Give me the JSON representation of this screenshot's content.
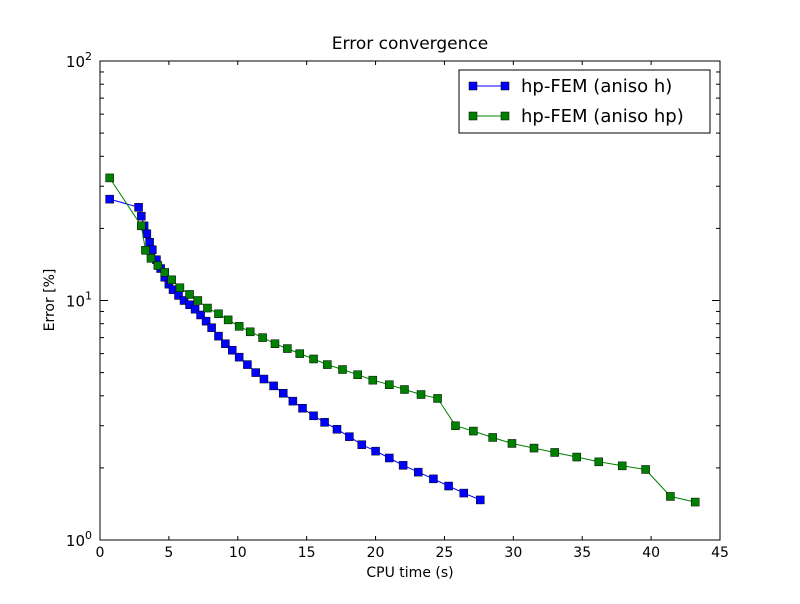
{
  "chart_data": {
    "type": "line",
    "title": "Error convergence",
    "xlabel": "CPU time (s)",
    "ylabel": "Error [%]",
    "xlim": [
      0,
      45
    ],
    "ylim": [
      1,
      100
    ],
    "yscale": "log",
    "grid": false,
    "legend_position": "top-right",
    "x_ticks": [
      "0",
      "5",
      "10",
      "15",
      "20",
      "25",
      "30",
      "35",
      "40",
      "45"
    ],
    "y_ticks": [
      {
        "base": "10",
        "exp": "0"
      },
      {
        "base": "10",
        "exp": "1"
      },
      {
        "base": "10",
        "exp": "2"
      }
    ],
    "series": [
      {
        "name": "hp-FEM (aniso h)",
        "color": "#0000ff",
        "marker": "square",
        "x": [
          0.7,
          2.8,
          3.0,
          3.2,
          3.4,
          3.6,
          3.8,
          4.1,
          4.4,
          4.7,
          5.0,
          5.3,
          5.7,
          6.1,
          6.5,
          6.9,
          7.3,
          7.7,
          8.1,
          8.6,
          9.1,
          9.6,
          10.1,
          10.7,
          11.3,
          11.9,
          12.6,
          13.3,
          14.0,
          14.7,
          15.5,
          16.3,
          17.2,
          18.1,
          19.0,
          20.0,
          21.0,
          22.0,
          23.1,
          24.2,
          25.3,
          26.4,
          27.6
        ],
        "y": [
          26.5,
          24.5,
          22.5,
          20.5,
          19.0,
          17.5,
          16.3,
          14.8,
          13.6,
          12.5,
          11.7,
          11.1,
          10.5,
          10.0,
          9.6,
          9.2,
          8.7,
          8.2,
          7.7,
          7.1,
          6.6,
          6.2,
          5.8,
          5.4,
          5.0,
          4.7,
          4.4,
          4.1,
          3.8,
          3.55,
          3.3,
          3.1,
          2.9,
          2.7,
          2.5,
          2.35,
          2.2,
          2.05,
          1.92,
          1.8,
          1.68,
          1.57,
          1.47
        ]
      },
      {
        "name": "hp-FEM (aniso hp)",
        "color": "#008000",
        "marker": "square",
        "x": [
          0.7,
          3.0,
          3.3,
          3.7,
          4.2,
          4.7,
          5.2,
          5.8,
          6.5,
          7.1,
          7.8,
          8.6,
          9.3,
          10.1,
          10.9,
          11.8,
          12.7,
          13.6,
          14.5,
          15.5,
          16.5,
          17.6,
          18.7,
          19.8,
          21.0,
          22.1,
          23.3,
          24.5,
          25.8,
          27.1,
          28.5,
          29.9,
          31.5,
          33.0,
          34.6,
          36.2,
          37.9,
          39.6,
          41.4,
          43.2
        ],
        "y": [
          32.5,
          20.5,
          16.2,
          15.0,
          14.0,
          13.1,
          12.2,
          11.3,
          10.6,
          10.0,
          9.3,
          8.8,
          8.3,
          7.8,
          7.4,
          7.0,
          6.6,
          6.3,
          6.0,
          5.7,
          5.4,
          5.15,
          4.9,
          4.65,
          4.45,
          4.25,
          4.05,
          3.9,
          3.0,
          2.85,
          2.68,
          2.53,
          2.42,
          2.32,
          2.22,
          2.12,
          2.04,
          1.97,
          1.52,
          1.44
        ]
      }
    ]
  }
}
